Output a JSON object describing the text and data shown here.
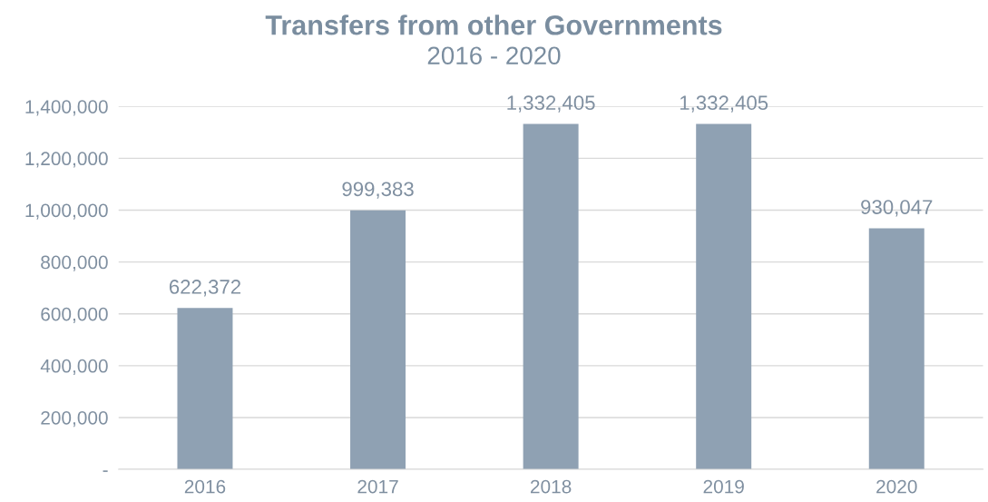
{
  "chart_data": {
    "type": "bar",
    "title": "Transfers from other Governments",
    "subtitle": "2016 - 2020",
    "categories": [
      "2016",
      "2017",
      "2018",
      "2019",
      "2020"
    ],
    "values": [
      622372,
      999383,
      1332405,
      1332405,
      930047
    ],
    "value_labels": [
      "622,372",
      "999,383",
      "1,332,405",
      "1,332,405",
      "930,047"
    ],
    "color": "#8fa1b3",
    "ylim": [
      0,
      1400000
    ],
    "yticks": [
      {
        "value": 0,
        "label": "-"
      },
      {
        "value": 200000,
        "label": "200,000"
      },
      {
        "value": 400000,
        "label": "400,000"
      },
      {
        "value": 600000,
        "label": "600,000"
      },
      {
        "value": 800000,
        "label": "800,000"
      },
      {
        "value": 1000000,
        "label": "1,000,000"
      },
      {
        "value": 1200000,
        "label": "1,200,000"
      },
      {
        "value": 1400000,
        "label": "1,400,000"
      }
    ],
    "grid": "y",
    "legend": false
  }
}
